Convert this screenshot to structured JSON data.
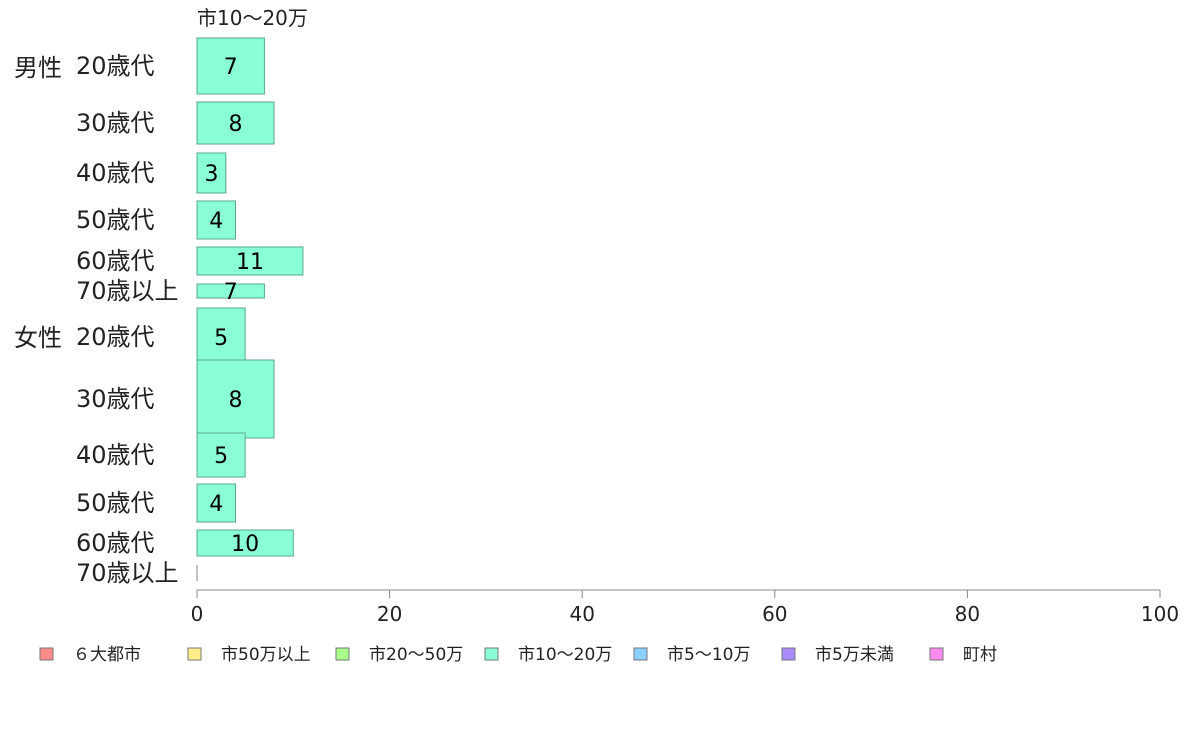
{
  "chart_data": {
    "type": "bar",
    "orientation": "horizontal",
    "title": "市10〜20万",
    "groups": [
      "男性",
      "女性"
    ],
    "categories": [
      "20歳代",
      "30歳代",
      "40歳代",
      "50歳代",
      "60歳代",
      "70歳以上",
      "20歳代",
      "30歳代",
      "40歳代",
      "50歳代",
      "60歳代",
      "70歳以上"
    ],
    "values": [
      7,
      8,
      3,
      4,
      11,
      7,
      5,
      8,
      5,
      4,
      10,
      0
    ],
    "data_labels": [
      "7",
      "8",
      "3",
      "4",
      "11",
      "7",
      "5",
      "8",
      "5",
      "4",
      "10",
      ""
    ],
    "xlim": [
      0,
      100
    ],
    "xticks": [
      "0",
      "20",
      "40",
      "60",
      "80",
      "100"
    ],
    "bar_color": "#8affd6",
    "bar_stroke": "#5aa88a",
    "grid": false,
    "legend_position": "bottom",
    "legend": [
      {
        "label": "６大都市",
        "color": "#ff8a8a"
      },
      {
        "label": "市50万以上",
        "color": "#ffef8a"
      },
      {
        "label": "市20〜50万",
        "color": "#aaff8a"
      },
      {
        "label": "市10〜20万",
        "color": "#8affd6"
      },
      {
        "label": "市5〜10万",
        "color": "#8ad0ff"
      },
      {
        "label": "市5万未満",
        "color": "#aa8aff"
      },
      {
        "label": "町村",
        "color": "#ff8aef"
      }
    ]
  }
}
